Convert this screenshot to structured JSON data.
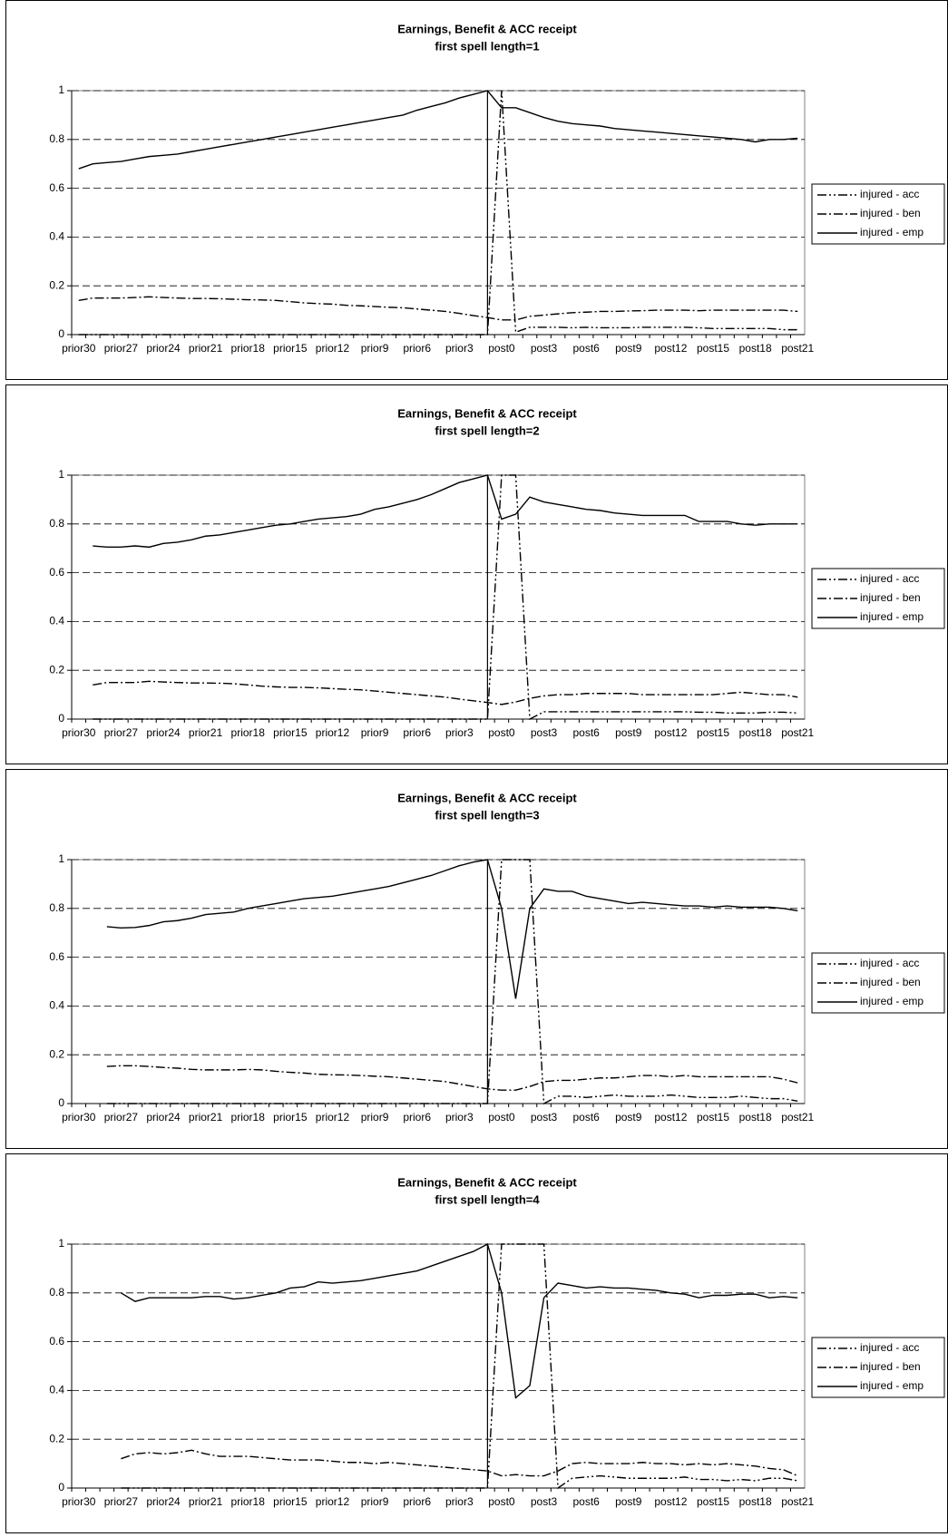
{
  "chart_data": [
    {
      "type": "line",
      "title": "Earnings, Benefit & ACC receipt",
      "subtitle": "first spell length=1",
      "categories": [
        "prior30",
        null,
        null,
        "prior27",
        null,
        null,
        "prior24",
        null,
        null,
        "prior21",
        null,
        null,
        "prior18",
        null,
        null,
        "prior15",
        null,
        null,
        "prior12",
        null,
        null,
        "prior9",
        null,
        null,
        "prior6",
        null,
        null,
        "prior3",
        null,
        null,
        "post0",
        null,
        null,
        "post3",
        null,
        null,
        "post6",
        null,
        null,
        "post9",
        null,
        null,
        "post12",
        null,
        null,
        "post15",
        null,
        null,
        "post18",
        null,
        null,
        "post21"
      ],
      "ylim": [
        0,
        1
      ],
      "yticks": [
        0,
        0.2,
        0.4,
        0.6,
        0.8,
        1
      ],
      "grid": true,
      "legend": "right",
      "series": [
        {
          "name": "injured - acc",
          "color": "#000000",
          "dash": "dash-dot-dot",
          "values": [
            0,
            0,
            0,
            0,
            0,
            0,
            0,
            0,
            0,
            0,
            0,
            0,
            0,
            0,
            0,
            0,
            0,
            0,
            0,
            0,
            0,
            0,
            0,
            0,
            0,
            0,
            0,
            0,
            0,
            0,
            1,
            0.01,
            0.03,
            0.03,
            0.03,
            0.028,
            0.03,
            0.028,
            0.028,
            0.028,
            0.03,
            0.03,
            0.03,
            0.03,
            0.028,
            0.025,
            0.025,
            0.025,
            0.025,
            0.025,
            0.02,
            0.02
          ]
        },
        {
          "name": "injured - ben",
          "color": "#000000",
          "dash": "dash-dot",
          "values": [
            0.14,
            0.15,
            0.15,
            0.15,
            0.152,
            0.155,
            0.152,
            0.15,
            0.148,
            0.148,
            0.147,
            0.145,
            0.143,
            0.142,
            0.14,
            0.135,
            0.13,
            0.127,
            0.125,
            0.12,
            0.118,
            0.115,
            0.112,
            0.11,
            0.105,
            0.1,
            0.095,
            0.087,
            0.078,
            0.07,
            0.06,
            0.06,
            0.075,
            0.08,
            0.085,
            0.09,
            0.092,
            0.095,
            0.095,
            0.097,
            0.098,
            0.1,
            0.1,
            0.1,
            0.098,
            0.1,
            0.1,
            0.1,
            0.1,
            0.1,
            0.1,
            0.095
          ]
        },
        {
          "name": "injured - emp",
          "color": "#000000",
          "dash": "solid",
          "values": [
            0.68,
            0.7,
            0.705,
            0.71,
            0.72,
            0.73,
            0.735,
            0.74,
            0.75,
            0.76,
            0.77,
            0.78,
            0.79,
            0.8,
            0.81,
            0.82,
            0.83,
            0.84,
            0.85,
            0.86,
            0.87,
            0.88,
            0.89,
            0.9,
            0.92,
            0.935,
            0.95,
            0.97,
            0.985,
            1.0,
            0.93,
            0.93,
            0.91,
            0.89,
            0.875,
            0.865,
            0.86,
            0.855,
            0.845,
            0.84,
            0.835,
            0.83,
            0.825,
            0.82,
            0.815,
            0.81,
            0.805,
            0.8,
            0.79,
            0.8,
            0.8,
            0.805
          ]
        }
      ]
    },
    {
      "type": "line",
      "title": "Earnings, Benefit & ACC receipt",
      "subtitle": "first spell length=2",
      "categories": [
        "prior30",
        null,
        null,
        "prior27",
        null,
        null,
        "prior24",
        null,
        null,
        "prior21",
        null,
        null,
        "prior18",
        null,
        null,
        "prior15",
        null,
        null,
        "prior12",
        null,
        null,
        "prior9",
        null,
        null,
        "prior6",
        null,
        null,
        "prior3",
        null,
        null,
        "post0",
        null,
        null,
        "post3",
        null,
        null,
        "post6",
        null,
        null,
        "post9",
        null,
        null,
        "post12",
        null,
        null,
        "post15",
        null,
        null,
        "post18",
        null,
        null,
        "post21"
      ],
      "ylim": [
        0,
        1
      ],
      "yticks": [
        0,
        0.2,
        0.4,
        0.6,
        0.8,
        1
      ],
      "grid": true,
      "legend": "right",
      "series": [
        {
          "name": "injured - acc",
          "color": "#000000",
          "dash": "dash-dot-dot",
          "values": [
            null,
            0,
            0,
            0,
            0,
            0,
            0,
            0,
            0,
            0,
            0,
            0,
            0,
            0,
            0,
            0,
            0,
            0,
            0,
            0,
            0,
            0,
            0,
            0,
            0,
            0,
            0,
            0,
            0,
            0,
            1,
            1,
            0,
            0.03,
            0.03,
            0.03,
            0.03,
            0.03,
            0.03,
            0.03,
            0.03,
            0.03,
            0.03,
            0.03,
            0.028,
            0.028,
            0.025,
            0.025,
            0.025,
            0.028,
            0.028,
            0.025
          ]
        },
        {
          "name": "injured - ben",
          "color": "#000000",
          "dash": "dash-dot",
          "values": [
            null,
            0.14,
            0.15,
            0.15,
            0.15,
            0.155,
            0.152,
            0.15,
            0.148,
            0.148,
            0.147,
            0.145,
            0.14,
            0.135,
            0.132,
            0.13,
            0.13,
            0.128,
            0.125,
            0.122,
            0.12,
            0.115,
            0.11,
            0.105,
            0.1,
            0.095,
            0.09,
            0.082,
            0.075,
            0.068,
            0.06,
            0.07,
            0.085,
            0.095,
            0.1,
            0.1,
            0.105,
            0.105,
            0.105,
            0.105,
            0.1,
            0.1,
            0.1,
            0.1,
            0.1,
            0.1,
            0.105,
            0.11,
            0.105,
            0.1,
            0.1,
            0.09
          ]
        },
        {
          "name": "injured - emp",
          "color": "#000000",
          "dash": "solid",
          "values": [
            null,
            0.71,
            0.705,
            0.705,
            0.71,
            0.705,
            0.72,
            0.725,
            0.735,
            0.75,
            0.755,
            0.765,
            0.775,
            0.785,
            0.795,
            0.8,
            0.81,
            0.82,
            0.825,
            0.83,
            0.84,
            0.86,
            0.87,
            0.885,
            0.9,
            0.92,
            0.945,
            0.97,
            0.985,
            1.0,
            0.82,
            0.84,
            0.91,
            0.89,
            0.88,
            0.87,
            0.86,
            0.855,
            0.845,
            0.84,
            0.835,
            0.835,
            0.835,
            0.835,
            0.81,
            0.81,
            0.81,
            0.8,
            0.795,
            0.8,
            0.8,
            0.8
          ]
        }
      ]
    },
    {
      "type": "line",
      "title": "Earnings, Benefit & ACC receipt",
      "subtitle": "first spell length=3",
      "categories": [
        "prior30",
        null,
        null,
        "prior27",
        null,
        null,
        "prior24",
        null,
        null,
        "prior21",
        null,
        null,
        "prior18",
        null,
        null,
        "prior15",
        null,
        null,
        "prior12",
        null,
        null,
        "prior9",
        null,
        null,
        "prior6",
        null,
        null,
        "prior3",
        null,
        null,
        "post0",
        null,
        null,
        "post3",
        null,
        null,
        "post6",
        null,
        null,
        "post9",
        null,
        null,
        "post12",
        null,
        null,
        "post15",
        null,
        null,
        "post18",
        null,
        null,
        "post21"
      ],
      "ylim": [
        0,
        1
      ],
      "yticks": [
        0,
        0.2,
        0.4,
        0.6,
        0.8,
        1
      ],
      "grid": true,
      "legend": "right",
      "series": [
        {
          "name": "injured - acc",
          "color": "#000000",
          "dash": "dash-dot-dot",
          "values": [
            null,
            null,
            0,
            0,
            0,
            0,
            0,
            0,
            0,
            0,
            0,
            0,
            0,
            0,
            0,
            0,
            0,
            0,
            0,
            0,
            0,
            0,
            0,
            0,
            0,
            0,
            0,
            0,
            0,
            0,
            1,
            1,
            1,
            0,
            0.03,
            0.03,
            0.025,
            0.03,
            0.035,
            0.03,
            0.03,
            0.03,
            0.035,
            0.03,
            0.025,
            0.025,
            0.025,
            0.03,
            0.025,
            0.02,
            0.02,
            0.01
          ]
        },
        {
          "name": "injured - ben",
          "color": "#000000",
          "dash": "dash-dot",
          "values": [
            null,
            null,
            0.152,
            0.155,
            0.155,
            0.152,
            0.148,
            0.145,
            0.14,
            0.138,
            0.138,
            0.138,
            0.14,
            0.138,
            0.132,
            0.128,
            0.125,
            0.12,
            0.118,
            0.117,
            0.115,
            0.112,
            0.11,
            0.105,
            0.1,
            0.095,
            0.09,
            0.08,
            0.07,
            0.06,
            0.055,
            0.055,
            0.07,
            0.09,
            0.095,
            0.095,
            0.1,
            0.105,
            0.105,
            0.11,
            0.115,
            0.115,
            0.11,
            0.115,
            0.11,
            0.11,
            0.11,
            0.11,
            0.11,
            0.11,
            0.1,
            0.085
          ]
        },
        {
          "name": "injured - emp",
          "color": "#000000",
          "dash": "solid",
          "values": [
            null,
            null,
            0.725,
            0.72,
            0.722,
            0.73,
            0.745,
            0.75,
            0.76,
            0.775,
            0.78,
            0.785,
            0.8,
            0.81,
            0.82,
            0.83,
            0.84,
            0.845,
            0.85,
            0.86,
            0.87,
            0.88,
            0.89,
            0.905,
            0.92,
            0.935,
            0.955,
            0.975,
            0.99,
            1.0,
            0.8,
            0.43,
            0.8,
            0.88,
            0.87,
            0.87,
            0.85,
            0.84,
            0.83,
            0.82,
            0.825,
            0.82,
            0.815,
            0.81,
            0.81,
            0.805,
            0.81,
            0.805,
            0.805,
            0.805,
            0.8,
            0.79
          ]
        }
      ]
    },
    {
      "type": "line",
      "title": "Earnings, Benefit & ACC receipt",
      "subtitle": "first spell length=4",
      "categories": [
        "prior30",
        null,
        null,
        "prior27",
        null,
        null,
        "prior24",
        null,
        null,
        "prior21",
        null,
        null,
        "prior18",
        null,
        null,
        "prior15",
        null,
        null,
        "prior12",
        null,
        null,
        "prior9",
        null,
        null,
        "prior6",
        null,
        null,
        "prior3",
        null,
        null,
        "post0",
        null,
        null,
        "post3",
        null,
        null,
        "post6",
        null,
        null,
        "post9",
        null,
        null,
        "post12",
        null,
        null,
        "post15",
        null,
        null,
        "post18",
        null,
        null,
        "post21"
      ],
      "ylim": [
        0,
        1
      ],
      "yticks": [
        0,
        0.2,
        0.4,
        0.6,
        0.8,
        1
      ],
      "grid": true,
      "legend": "right",
      "series": [
        {
          "name": "injured - acc",
          "color": "#000000",
          "dash": "dash-dot-dot",
          "values": [
            null,
            null,
            null,
            0,
            0,
            0,
            0,
            0,
            0,
            0,
            0,
            0,
            0,
            0,
            0,
            0,
            0,
            0,
            0,
            0,
            0,
            0,
            0,
            0,
            0,
            0,
            0,
            0,
            0,
            0,
            1,
            1,
            1,
            1,
            0,
            0.04,
            0.045,
            0.05,
            0.045,
            0.04,
            0.04,
            0.04,
            0.04,
            0.045,
            0.035,
            0.035,
            0.03,
            0.035,
            0.03,
            0.04,
            0.04,
            0.03
          ]
        },
        {
          "name": "injured - ben",
          "color": "#000000",
          "dash": "dash-dot",
          "values": [
            null,
            null,
            null,
            0.12,
            0.14,
            0.145,
            0.14,
            0.145,
            0.155,
            0.14,
            0.13,
            0.13,
            0.13,
            0.125,
            0.12,
            0.115,
            0.115,
            0.115,
            0.11,
            0.105,
            0.105,
            0.1,
            0.105,
            0.1,
            0.095,
            0.09,
            0.085,
            0.08,
            0.075,
            0.07,
            0.05,
            0.055,
            0.05,
            0.05,
            0.07,
            0.1,
            0.105,
            0.1,
            0.1,
            0.1,
            0.105,
            0.1,
            0.1,
            0.095,
            0.1,
            0.095,
            0.1,
            0.095,
            0.09,
            0.08,
            0.075,
            0.05
          ]
        },
        {
          "name": "injured - emp",
          "color": "#000000",
          "dash": "solid",
          "values": [
            null,
            null,
            null,
            0.8,
            0.765,
            0.78,
            0.78,
            0.78,
            0.78,
            0.785,
            0.785,
            0.775,
            0.78,
            0.79,
            0.8,
            0.82,
            0.825,
            0.845,
            0.84,
            0.845,
            0.85,
            0.86,
            0.87,
            0.88,
            0.89,
            0.91,
            0.93,
            0.95,
            0.97,
            1.0,
            0.8,
            0.37,
            0.42,
            0.78,
            0.84,
            0.83,
            0.82,
            0.825,
            0.82,
            0.82,
            0.815,
            0.81,
            0.8,
            0.795,
            0.78,
            0.79,
            0.79,
            0.795,
            0.795,
            0.78,
            0.785,
            0.78
          ]
        }
      ]
    }
  ]
}
